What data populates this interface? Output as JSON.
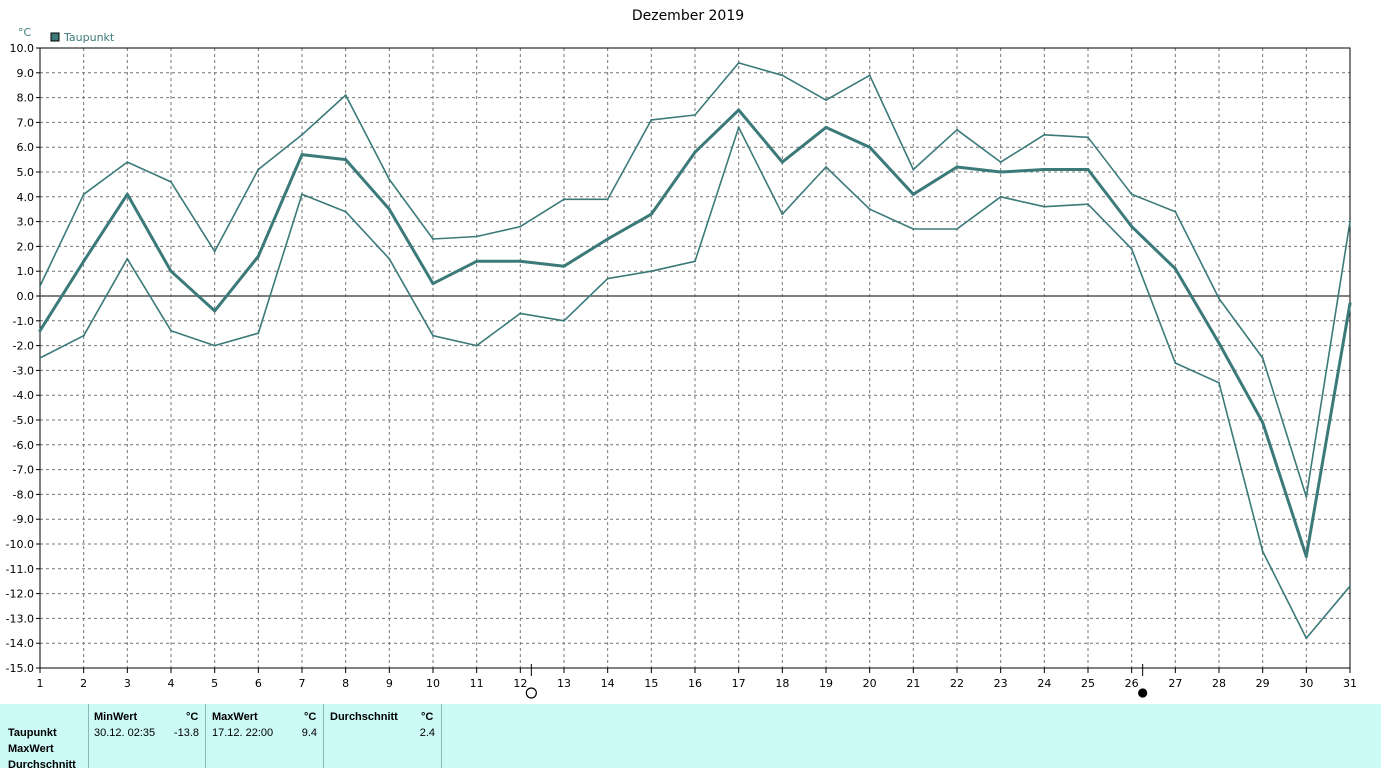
{
  "chart_data": {
    "type": "line",
    "title": "Dezember 2019",
    "ylabel": "°C",
    "xlabel": "",
    "ylim": [
      -15,
      10
    ],
    "y_ticks": [
      "10.0",
      "9.0",
      "8.0",
      "7.0",
      "6.0",
      "5.0",
      "4.0",
      "3.0",
      "2.0",
      "1.0",
      "0.0",
      "-1.0",
      "-2.0",
      "-3.0",
      "-4.0",
      "-5.0",
      "-6.0",
      "-7.0",
      "-8.0",
      "-9.0",
      "-10.0",
      "-11.0",
      "-12.0",
      "-13.0",
      "-14.0",
      "-15.0"
    ],
    "x_ticks": [
      "1",
      "2",
      "3",
      "4",
      "5",
      "6",
      "7",
      "8",
      "9",
      "10",
      "11",
      "12",
      "13",
      "14",
      "15",
      "16",
      "17",
      "18",
      "19",
      "20",
      "21",
      "22",
      "23",
      "24",
      "25",
      "26",
      "27",
      "28",
      "29",
      "30",
      "31"
    ],
    "grid": true,
    "legend": {
      "position": "top-left",
      "entries": [
        "Taupunkt"
      ]
    },
    "color": "#3c7a7a",
    "moon_phases": [
      {
        "day": 12,
        "phase": "full-moon"
      },
      {
        "day": 26,
        "phase": "new-moon"
      }
    ],
    "series": [
      {
        "name": "Taupunkt",
        "role": "avg",
        "x": [
          1,
          2,
          3,
          4,
          5,
          6,
          7,
          8,
          9,
          10,
          11,
          12,
          13,
          14,
          15,
          16,
          17,
          18,
          19,
          20,
          21,
          22,
          23,
          24,
          25,
          26,
          27,
          28,
          29,
          30,
          31
        ],
        "values": [
          -1.4,
          1.4,
          4.1,
          1.0,
          -0.6,
          1.6,
          5.7,
          5.5,
          3.5,
          0.5,
          1.4,
          1.4,
          1.2,
          2.3,
          3.3,
          5.8,
          7.5,
          5.4,
          6.8,
          6.0,
          4.1,
          5.2,
          5.0,
          5.1,
          5.1,
          2.8,
          1.1,
          -1.9,
          -5.1,
          -10.5,
          -0.3
        ]
      },
      {
        "name": "",
        "role": "max",
        "x": [
          1,
          2,
          3,
          4,
          5,
          6,
          7,
          8,
          9,
          10,
          11,
          12,
          13,
          14,
          15,
          16,
          17,
          18,
          19,
          20,
          21,
          22,
          23,
          24,
          25,
          26,
          27,
          28,
          29,
          30,
          31
        ],
        "values": [
          0.4,
          4.1,
          5.4,
          4.6,
          1.8,
          5.1,
          6.5,
          8.1,
          4.7,
          2.3,
          2.4,
          2.8,
          3.9,
          3.9,
          7.1,
          7.3,
          9.4,
          8.9,
          7.9,
          8.9,
          5.1,
          6.7,
          5.4,
          6.5,
          6.4,
          4.1,
          3.4,
          -0.1,
          -2.5,
          -8.1,
          3.0
        ]
      },
      {
        "name": "",
        "role": "min",
        "x": [
          1,
          2,
          3,
          4,
          5,
          6,
          7,
          8,
          9,
          10,
          11,
          12,
          13,
          14,
          15,
          16,
          17,
          18,
          19,
          20,
          21,
          22,
          23,
          24,
          25,
          26,
          27,
          28,
          29,
          30,
          31
        ],
        "values": [
          -2.5,
          -1.6,
          1.5,
          -1.4,
          -2.0,
          -1.5,
          4.1,
          3.4,
          1.5,
          -1.6,
          -2.0,
          -0.7,
          -1.0,
          0.7,
          1.0,
          1.4,
          6.8,
          3.3,
          5.2,
          3.5,
          2.7,
          2.7,
          4.0,
          3.6,
          3.7,
          1.9,
          -2.7,
          -3.5,
          -10.3,
          -13.8,
          -11.7
        ]
      }
    ]
  },
  "stats": {
    "headers": {
      "min": "MinWert",
      "max": "MaxWert",
      "avg": "Durchschnitt",
      "unit": "°C"
    },
    "row_labels": [
      "Taupunkt",
      "MaxWert",
      "Durchschnitt"
    ],
    "taupunkt": {
      "min_time": "30.12.  02:35",
      "min_value": "-13.8",
      "max_time": "17.12.  22:00",
      "max_value": "9.4",
      "avg_value": "2.4"
    }
  }
}
